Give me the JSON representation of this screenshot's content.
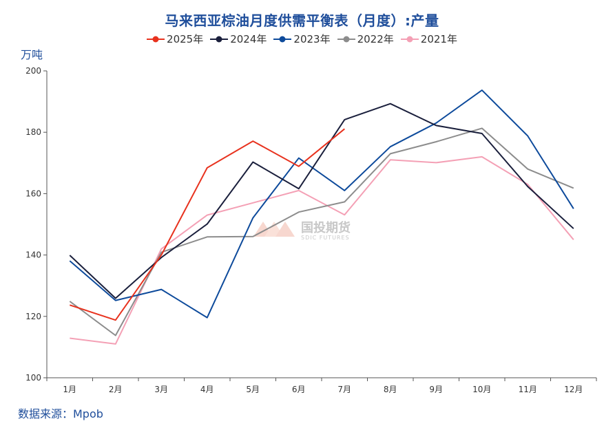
{
  "chart_data": {
    "type": "line",
    "title": "马来西亚棕油月度供需平衡表（月度）:产量",
    "ylabel": "万吨",
    "xlabel": "",
    "ylim": [
      100,
      200
    ],
    "yticks": [
      100,
      120,
      140,
      160,
      180,
      200
    ],
    "categories": [
      "1月",
      "2月",
      "3月",
      "4月",
      "5月",
      "6月",
      "7月",
      "8月",
      "9月",
      "10月",
      "11月",
      "12月"
    ],
    "legend_position": "top-center",
    "series": [
      {
        "name": "2025年",
        "color": "#e8321e",
        "values": [
          123.7,
          118.8,
          140.0,
          168.4,
          177.1,
          168.9,
          181.1,
          null,
          null,
          null,
          null,
          null
        ]
      },
      {
        "name": "2024年",
        "color": "#1a1f3c",
        "values": [
          139.9,
          125.9,
          139.2,
          150.1,
          170.3,
          161.6,
          184.1,
          189.3,
          182.2,
          179.6,
          162.3,
          148.6
        ]
      },
      {
        "name": "2023年",
        "color": "#0d4a9b",
        "values": [
          138.1,
          125.2,
          128.8,
          119.6,
          152.1,
          171.6,
          161.0,
          175.3,
          183.0,
          193.7,
          178.8,
          155.1
        ]
      },
      {
        "name": "2022年",
        "color": "#8c8c8c",
        "values": [
          124.9,
          113.8,
          140.9,
          145.9,
          146.0,
          154.0,
          157.3,
          173.0,
          176.9,
          181.3,
          168.0,
          161.8
        ]
      },
      {
        "name": "2021年",
        "color": "#f4a0b5",
        "values": [
          112.9,
          111.0,
          142.0,
          153.0,
          157.0,
          161.0,
          153.1,
          171.0,
          170.1,
          172.0,
          163.0,
          145.0
        ]
      }
    ]
  },
  "source": "数据来源：Mpob",
  "watermark": {
    "main": "国投期货",
    "sub": "SDIC FUTURES"
  }
}
